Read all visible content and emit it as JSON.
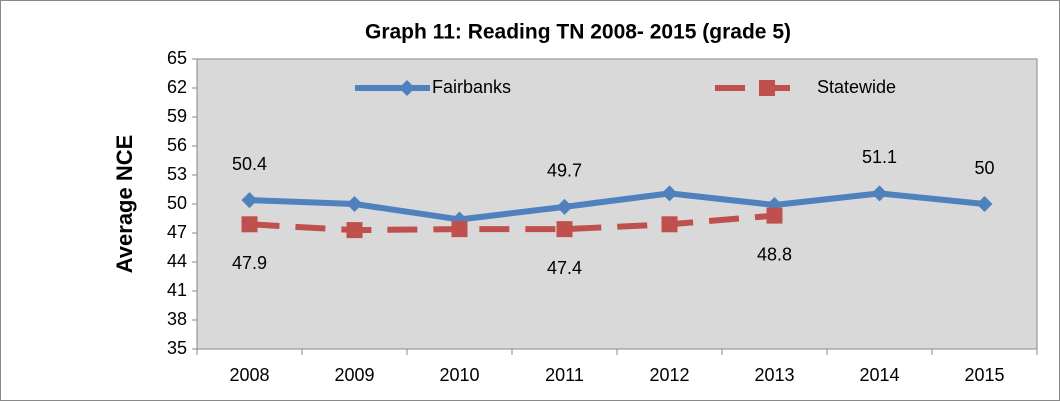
{
  "chart_data": {
    "type": "line",
    "title": "Graph 11: Reading TN 2008- 2015 (grade 5)",
    "ylabel": "Average NCE",
    "categories": [
      "2008",
      "2009",
      "2010",
      "2011",
      "2012",
      "2013",
      "2014",
      "2015"
    ],
    "series": [
      {
        "name": "Fairbanks",
        "color": "#4f81bd",
        "dashed": false,
        "marker": "diamond",
        "values": [
          50.4,
          50.0,
          48.4,
          49.7,
          51.1,
          49.9,
          51.1,
          50
        ],
        "value_labels": [
          "50.4",
          null,
          null,
          "49.7",
          null,
          null,
          "51.1",
          "50"
        ],
        "label_position": "above"
      },
      {
        "name": "Statewide",
        "color": "#c0504d",
        "dashed": true,
        "marker": "square",
        "values": [
          47.9,
          47.3,
          47.4,
          47.4,
          47.9,
          48.8,
          null,
          null
        ],
        "value_labels": [
          "47.9",
          null,
          null,
          "47.4",
          null,
          "48.8",
          null,
          null
        ],
        "label_position": "below"
      }
    ],
    "ylim": [
      35,
      65
    ],
    "yticks": [
      35,
      38,
      41,
      44,
      47,
      50,
      53,
      56,
      59,
      62,
      65
    ],
    "grid": false,
    "legend": "top"
  }
}
